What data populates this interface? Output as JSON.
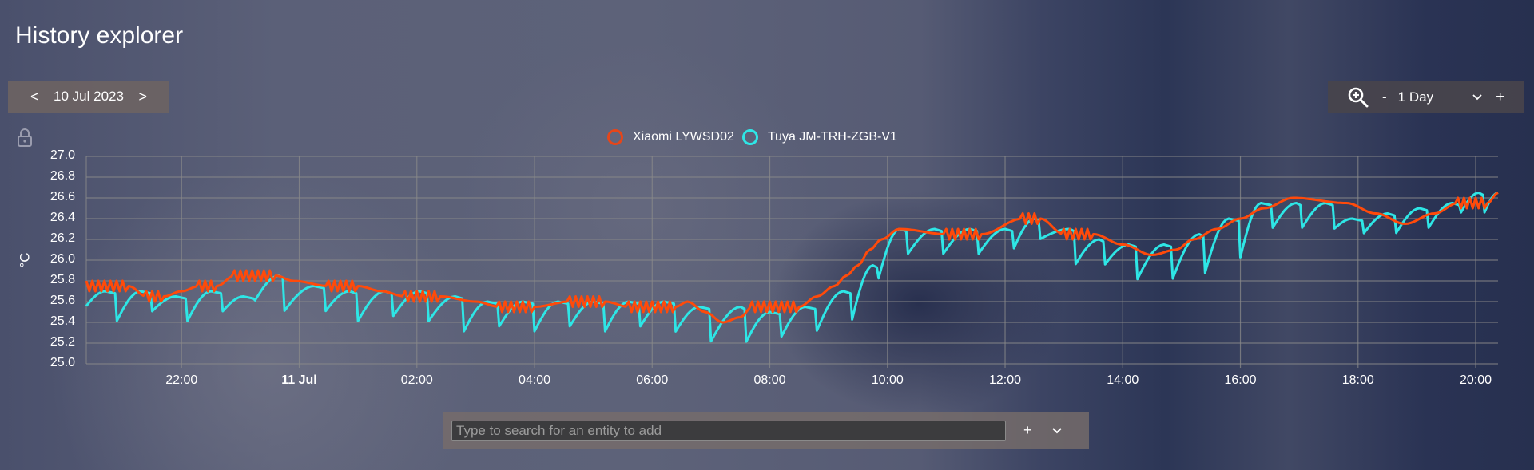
{
  "page": {
    "title": "History explorer"
  },
  "date_nav": {
    "prev": "<",
    "date": "10 Jul 2023",
    "next": ">"
  },
  "range": {
    "zoom_icon": "zoom-in-icon",
    "minus": "-",
    "value": "1 Day",
    "dropdown_icon": "chevron-down-icon",
    "plus": "+"
  },
  "lock_icon": "lock-icon",
  "entity_bar": {
    "placeholder": "Type to search for an entity to add",
    "add": "+",
    "more_icon": "chevron-down-icon"
  },
  "colors": {
    "xiaomi": "#ff4a0a",
    "tuya": "#2ee6e6",
    "grid": "#8a8a8a"
  },
  "chart_data": {
    "type": "line",
    "title": "",
    "xlabel": "",
    "ylabel": "°C",
    "ylim": [
      25.0,
      27.0
    ],
    "y_ticks": [
      "27.0",
      "26.8",
      "26.6",
      "26.4",
      "26.2",
      "26.0",
      "25.8",
      "25.6",
      "25.4",
      "25.2",
      "25.0"
    ],
    "x_ticks": [
      {
        "label": "22:00",
        "bold": false
      },
      {
        "label": "11 Jul",
        "bold": true
      },
      {
        "label": "02:00",
        "bold": false
      },
      {
        "label": "04:00",
        "bold": false
      },
      {
        "label": "06:00",
        "bold": false
      },
      {
        "label": "08:00",
        "bold": false
      },
      {
        "label": "10:00",
        "bold": false
      },
      {
        "label": "12:00",
        "bold": false
      },
      {
        "label": "14:00",
        "bold": false
      },
      {
        "label": "16:00",
        "bold": false
      },
      {
        "label": "18:00",
        "bold": false
      },
      {
        "label": "20:00",
        "bold": false
      }
    ],
    "x_range_hours": [
      -3.62,
      20.38
    ],
    "grid": true,
    "legend_position": "top",
    "series": [
      {
        "name": "Xiaomi LYWSD02",
        "color": "#ff4a0a",
        "points_hours_temp": [
          [
            -3.62,
            25.75
          ],
          [
            -2.9,
            25.75
          ],
          [
            -2.6,
            25.65
          ],
          [
            -2.3,
            25.65
          ],
          [
            -2.0,
            25.7
          ],
          [
            -1.7,
            25.75
          ],
          [
            -1.4,
            25.75
          ],
          [
            -1.1,
            25.85
          ],
          [
            -0.4,
            25.85
          ],
          [
            -0.1,
            25.8
          ],
          [
            0.5,
            25.75
          ],
          [
            1.0,
            25.75
          ],
          [
            1.4,
            25.7
          ],
          [
            1.8,
            25.65
          ],
          [
            2.4,
            25.65
          ],
          [
            3.0,
            25.6
          ],
          [
            3.4,
            25.55
          ],
          [
            4.0,
            25.55
          ],
          [
            4.6,
            25.6
          ],
          [
            5.2,
            25.6
          ],
          [
            5.6,
            25.55
          ],
          [
            6.4,
            25.55
          ],
          [
            6.6,
            25.6
          ],
          [
            6.9,
            25.5
          ],
          [
            7.2,
            25.4
          ],
          [
            7.5,
            25.45
          ],
          [
            7.7,
            25.55
          ],
          [
            8.5,
            25.55
          ],
          [
            8.8,
            25.65
          ],
          [
            9.1,
            25.75
          ],
          [
            9.3,
            25.85
          ],
          [
            9.5,
            25.95
          ],
          [
            9.7,
            26.1
          ],
          [
            9.9,
            26.2
          ],
          [
            10.2,
            26.3
          ],
          [
            11.0,
            26.25
          ],
          [
            11.6,
            26.25
          ],
          [
            12.3,
            26.4
          ],
          [
            12.6,
            26.4
          ],
          [
            13.0,
            26.25
          ],
          [
            13.5,
            26.25
          ],
          [
            14.0,
            26.15
          ],
          [
            14.5,
            26.05
          ],
          [
            14.9,
            26.1
          ],
          [
            15.2,
            26.2
          ],
          [
            15.6,
            26.3
          ],
          [
            16.0,
            26.4
          ],
          [
            16.4,
            26.5
          ],
          [
            16.9,
            26.6
          ],
          [
            17.8,
            26.55
          ],
          [
            18.3,
            26.45
          ],
          [
            18.8,
            26.35
          ],
          [
            19.3,
            26.45
          ],
          [
            19.7,
            26.55
          ],
          [
            20.2,
            26.55
          ],
          [
            20.38,
            26.65
          ]
        ]
      },
      {
        "name": "Tuya JM-TRH-ZGB-V1",
        "color": "#2ee6e6",
        "sawtooth_segments_hours": [
          [
            -3.62,
            25.55,
            -3.3,
            25.7
          ],
          [
            -3.1,
            25.4,
            -2.7,
            25.7
          ],
          [
            -2.5,
            25.5,
            -2.1,
            25.65
          ],
          [
            -1.9,
            25.4,
            -1.5,
            25.7
          ],
          [
            -1.3,
            25.5,
            -0.95,
            25.65
          ],
          [
            -0.75,
            25.6,
            -0.35,
            25.85
          ],
          [
            -0.25,
            25.5,
            0.25,
            25.75
          ],
          [
            0.45,
            25.5,
            0.85,
            25.7
          ],
          [
            1.0,
            25.4,
            1.45,
            25.7
          ],
          [
            1.6,
            25.45,
            2.05,
            25.7
          ],
          [
            2.2,
            25.4,
            2.65,
            25.65
          ],
          [
            2.8,
            25.3,
            3.2,
            25.6
          ],
          [
            3.4,
            25.35,
            3.8,
            25.6
          ],
          [
            4.0,
            25.3,
            4.4,
            25.6
          ],
          [
            4.6,
            25.35,
            5.0,
            25.6
          ],
          [
            5.2,
            25.3,
            5.6,
            25.6
          ],
          [
            5.8,
            25.35,
            6.2,
            25.6
          ],
          [
            6.4,
            25.3,
            6.8,
            25.55
          ],
          [
            7.0,
            25.2,
            7.5,
            25.55
          ],
          [
            7.6,
            25.2,
            8.0,
            25.5
          ],
          [
            8.2,
            25.25,
            8.6,
            25.55
          ],
          [
            8.8,
            25.3,
            9.25,
            25.7
          ],
          [
            9.4,
            25.4,
            9.75,
            25.95
          ],
          [
            9.85,
            25.8,
            10.2,
            26.3
          ],
          [
            10.35,
            26.05,
            10.8,
            26.3
          ],
          [
            10.95,
            26.05,
            11.4,
            26.3
          ],
          [
            11.55,
            26.05,
            12.0,
            26.3
          ],
          [
            12.15,
            26.1,
            12.5,
            26.4
          ],
          [
            12.6,
            26.2,
            13.1,
            26.3
          ],
          [
            13.2,
            25.95,
            13.6,
            26.2
          ],
          [
            13.7,
            25.95,
            14.1,
            26.15
          ],
          [
            14.25,
            25.8,
            14.7,
            26.15
          ],
          [
            14.85,
            25.8,
            15.3,
            26.25
          ],
          [
            15.4,
            25.85,
            15.8,
            26.4
          ],
          [
            16.0,
            26.0,
            16.35,
            26.55
          ],
          [
            16.55,
            26.3,
            16.95,
            26.55
          ],
          [
            17.05,
            26.3,
            17.45,
            26.55
          ],
          [
            17.6,
            26.3,
            17.9,
            26.4
          ],
          [
            18.1,
            26.25,
            18.5,
            26.45
          ],
          [
            18.65,
            26.25,
            19.05,
            26.5
          ],
          [
            19.2,
            26.3,
            19.6,
            26.55
          ],
          [
            19.75,
            26.45,
            20.05,
            26.65
          ],
          [
            20.15,
            26.45,
            20.38,
            26.65
          ]
        ]
      }
    ]
  }
}
